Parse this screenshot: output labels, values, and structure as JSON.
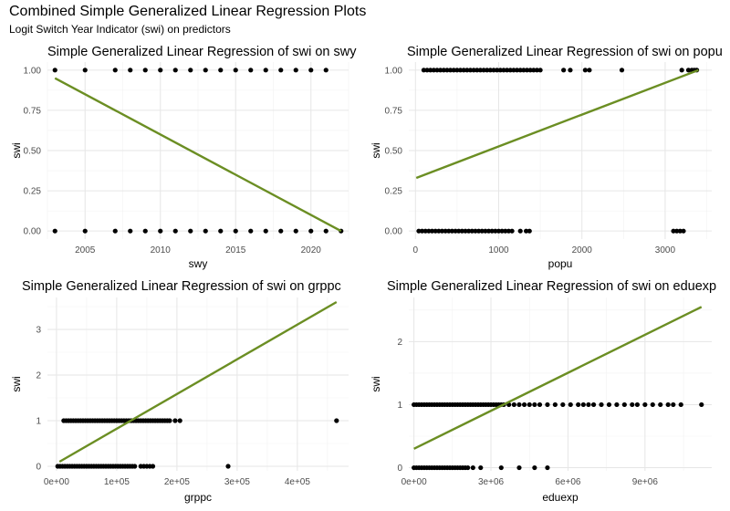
{
  "figure": {
    "title": "Combined Simple Generalized Linear Regression Plots",
    "subtitle": "Logit Switch Year Indicator (swi) on predictors"
  },
  "colors": {
    "line": "#6b8e23",
    "points": "#000000",
    "grid_major": "#e6e6e6",
    "grid_minor": "#f2f2f2",
    "tick_text": "#4d4d4d"
  },
  "chart_data": [
    {
      "type": "scatter",
      "title": "Simple Generalized Linear Regression of swi on swy",
      "xlabel": "swy",
      "ylabel": "swi",
      "xlim": [
        2002.5,
        2022.5
      ],
      "ylim": [
        -0.05,
        1.05
      ],
      "xticks": [
        2005,
        2010,
        2015,
        2020
      ],
      "xtick_labels": [
        "2005",
        "2010",
        "2015",
        "2020"
      ],
      "yticks": [
        0,
        0.25,
        0.5,
        0.75,
        1
      ],
      "ytick_labels": [
        "0.00",
        "0.25",
        "0.50",
        "0.75",
        "1.00"
      ],
      "points": [
        [
          2003,
          1
        ],
        [
          2005,
          1
        ],
        [
          2007,
          1
        ],
        [
          2008,
          1
        ],
        [
          2009,
          1
        ],
        [
          2010,
          1
        ],
        [
          2011,
          1
        ],
        [
          2012,
          1
        ],
        [
          2013,
          1
        ],
        [
          2014,
          1
        ],
        [
          2015,
          1
        ],
        [
          2016,
          1
        ],
        [
          2017,
          1
        ],
        [
          2018,
          1
        ],
        [
          2019,
          1
        ],
        [
          2020,
          1
        ],
        [
          2021,
          1
        ],
        [
          2003,
          0
        ],
        [
          2005,
          0
        ],
        [
          2007,
          0
        ],
        [
          2008,
          0
        ],
        [
          2009,
          0
        ],
        [
          2010,
          0
        ],
        [
          2011,
          0
        ],
        [
          2012,
          0
        ],
        [
          2013,
          0
        ],
        [
          2014,
          0
        ],
        [
          2015,
          0
        ],
        [
          2016,
          0
        ],
        [
          2017,
          0
        ],
        [
          2018,
          0
        ],
        [
          2019,
          0
        ],
        [
          2020,
          0
        ],
        [
          2021,
          0
        ],
        [
          2022,
          0
        ]
      ],
      "fit_line": [
        [
          2003,
          0.95
        ],
        [
          2022,
          0.0
        ]
      ]
    },
    {
      "type": "scatter",
      "title": "Simple Generalized Linear Regression of swi on popu",
      "xlabel": "popu",
      "ylabel": "swi",
      "xlim": [
        -80,
        3560
      ],
      "ylim": [
        -0.05,
        1.05
      ],
      "xticks": [
        0,
        1000,
        2000,
        3000
      ],
      "xtick_labels": [
        "0",
        "1000",
        "2000",
        "3000"
      ],
      "yticks": [
        0,
        0.25,
        0.5,
        0.75,
        1
      ],
      "ytick_labels": [
        "0.00",
        "0.25",
        "0.50",
        "0.75",
        "1.00"
      ],
      "points": [
        [
          100,
          1
        ],
        [
          140,
          1
        ],
        [
          180,
          1
        ],
        [
          220,
          1
        ],
        [
          260,
          1
        ],
        [
          300,
          1
        ],
        [
          340,
          1
        ],
        [
          380,
          1
        ],
        [
          420,
          1
        ],
        [
          460,
          1
        ],
        [
          500,
          1
        ],
        [
          540,
          1
        ],
        [
          580,
          1
        ],
        [
          620,
          1
        ],
        [
          660,
          1
        ],
        [
          700,
          1
        ],
        [
          740,
          1
        ],
        [
          780,
          1
        ],
        [
          820,
          1
        ],
        [
          860,
          1
        ],
        [
          900,
          1
        ],
        [
          940,
          1
        ],
        [
          980,
          1
        ],
        [
          1020,
          1
        ],
        [
          1060,
          1
        ],
        [
          1100,
          1
        ],
        [
          1140,
          1
        ],
        [
          1180,
          1
        ],
        [
          1220,
          1
        ],
        [
          1260,
          1
        ],
        [
          1300,
          1
        ],
        [
          1340,
          1
        ],
        [
          1380,
          1
        ],
        [
          1420,
          1
        ],
        [
          1460,
          1
        ],
        [
          1500,
          1
        ],
        [
          1780,
          1
        ],
        [
          1860,
          1
        ],
        [
          2040,
          1
        ],
        [
          2090,
          1
        ],
        [
          2480,
          1
        ],
        [
          3200,
          1
        ],
        [
          3280,
          1
        ],
        [
          3320,
          1
        ],
        [
          3350,
          1
        ],
        [
          3380,
          1
        ],
        [
          40,
          0
        ],
        [
          80,
          0
        ],
        [
          120,
          0
        ],
        [
          160,
          0
        ],
        [
          200,
          0
        ],
        [
          240,
          0
        ],
        [
          280,
          0
        ],
        [
          320,
          0
        ],
        [
          360,
          0
        ],
        [
          400,
          0
        ],
        [
          440,
          0
        ],
        [
          480,
          0
        ],
        [
          520,
          0
        ],
        [
          560,
          0
        ],
        [
          600,
          0
        ],
        [
          640,
          0
        ],
        [
          680,
          0
        ],
        [
          720,
          0
        ],
        [
          760,
          0
        ],
        [
          800,
          0
        ],
        [
          840,
          0
        ],
        [
          880,
          0
        ],
        [
          920,
          0
        ],
        [
          960,
          0
        ],
        [
          1000,
          0
        ],
        [
          1040,
          0
        ],
        [
          1080,
          0
        ],
        [
          1120,
          0
        ],
        [
          1160,
          0
        ],
        [
          1260,
          0
        ],
        [
          1330,
          0
        ],
        [
          1370,
          0
        ],
        [
          3100,
          0
        ],
        [
          3140,
          0
        ],
        [
          3180,
          0
        ],
        [
          3220,
          0
        ]
      ],
      "fit_line": [
        [
          10,
          0.33
        ],
        [
          3400,
          1.0
        ]
      ]
    },
    {
      "type": "scatter",
      "title": "Simple Generalized Linear Regression of swi on grppc",
      "xlabel": "grppc",
      "ylabel": "swi",
      "xlim": [
        -15000,
        485000
      ],
      "ylim": [
        -0.1,
        3.7
      ],
      "xticks": [
        0,
        100000,
        200000,
        300000,
        400000
      ],
      "xtick_labels": [
        "0e+00",
        "1e+05",
        "2e+05",
        "3e+05",
        "4e+05"
      ],
      "yticks": [
        0,
        1,
        2,
        3
      ],
      "ytick_labels": [
        "0",
        "1",
        "2",
        "3"
      ],
      "points": [
        [
          12000,
          1
        ],
        [
          16000,
          1
        ],
        [
          20000,
          1
        ],
        [
          24000,
          1
        ],
        [
          28000,
          1
        ],
        [
          32000,
          1
        ],
        [
          36000,
          1
        ],
        [
          40000,
          1
        ],
        [
          44000,
          1
        ],
        [
          48000,
          1
        ],
        [
          52000,
          1
        ],
        [
          56000,
          1
        ],
        [
          60000,
          1
        ],
        [
          64000,
          1
        ],
        [
          68000,
          1
        ],
        [
          72000,
          1
        ],
        [
          76000,
          1
        ],
        [
          80000,
          1
        ],
        [
          84000,
          1
        ],
        [
          88000,
          1
        ],
        [
          92000,
          1
        ],
        [
          96000,
          1
        ],
        [
          100000,
          1
        ],
        [
          104000,
          1
        ],
        [
          108000,
          1
        ],
        [
          112000,
          1
        ],
        [
          116000,
          1
        ],
        [
          120000,
          1
        ],
        [
          124000,
          1
        ],
        [
          128000,
          1
        ],
        [
          132000,
          1
        ],
        [
          136000,
          1
        ],
        [
          140000,
          1
        ],
        [
          144000,
          1
        ],
        [
          148000,
          1
        ],
        [
          152000,
          1
        ],
        [
          156000,
          1
        ],
        [
          160000,
          1
        ],
        [
          164000,
          1
        ],
        [
          168000,
          1
        ],
        [
          172000,
          1
        ],
        [
          176000,
          1
        ],
        [
          180000,
          1
        ],
        [
          184000,
          1
        ],
        [
          188000,
          1
        ],
        [
          197000,
          1
        ],
        [
          205000,
          1
        ],
        [
          465000,
          1
        ],
        [
          2000,
          0
        ],
        [
          6000,
          0
        ],
        [
          10000,
          0
        ],
        [
          14000,
          0
        ],
        [
          18000,
          0
        ],
        [
          22000,
          0
        ],
        [
          26000,
          0
        ],
        [
          30000,
          0
        ],
        [
          34000,
          0
        ],
        [
          38000,
          0
        ],
        [
          42000,
          0
        ],
        [
          46000,
          0
        ],
        [
          50000,
          0
        ],
        [
          54000,
          0
        ],
        [
          58000,
          0
        ],
        [
          62000,
          0
        ],
        [
          66000,
          0
        ],
        [
          70000,
          0
        ],
        [
          74000,
          0
        ],
        [
          78000,
          0
        ],
        [
          82000,
          0
        ],
        [
          86000,
          0
        ],
        [
          90000,
          0
        ],
        [
          94000,
          0
        ],
        [
          98000,
          0
        ],
        [
          102000,
          0
        ],
        [
          106000,
          0
        ],
        [
          110000,
          0
        ],
        [
          114000,
          0
        ],
        [
          118000,
          0
        ],
        [
          122000,
          0
        ],
        [
          126000,
          0
        ],
        [
          130000,
          0
        ],
        [
          140000,
          0
        ],
        [
          145000,
          0
        ],
        [
          150000,
          0
        ],
        [
          155000,
          0
        ],
        [
          160000,
          0
        ],
        [
          285000,
          0
        ]
      ],
      "fit_line": [
        [
          5000,
          0.1
        ],
        [
          465000,
          3.6
        ]
      ]
    },
    {
      "type": "scatter",
      "title": "Simple Generalized Linear Regression of swi on eduexp",
      "xlabel": "eduexp",
      "ylabel": "swi",
      "xlim": [
        -200000,
        11600000
      ],
      "ylim": [
        -0.05,
        2.7
      ],
      "xticks": [
        0,
        3000000,
        6000000,
        9000000
      ],
      "xtick_labels": [
        "0e+00",
        "3e+06",
        "6e+06",
        "9e+06"
      ],
      "yticks": [
        0,
        1,
        2
      ],
      "ytick_labels": [
        "0",
        "1",
        "2"
      ],
      "points": [
        [
          0,
          1
        ],
        [
          100000,
          1
        ],
        [
          200000,
          1
        ],
        [
          300000,
          1
        ],
        [
          400000,
          1
        ],
        [
          500000,
          1
        ],
        [
          600000,
          1
        ],
        [
          700000,
          1
        ],
        [
          800000,
          1
        ],
        [
          900000,
          1
        ],
        [
          1000000,
          1
        ],
        [
          1100000,
          1
        ],
        [
          1200000,
          1
        ],
        [
          1300000,
          1
        ],
        [
          1400000,
          1
        ],
        [
          1500000,
          1
        ],
        [
          1600000,
          1
        ],
        [
          1700000,
          1
        ],
        [
          1800000,
          1
        ],
        [
          1900000,
          1
        ],
        [
          2000000,
          1
        ],
        [
          2100000,
          1
        ],
        [
          2200000,
          1
        ],
        [
          2300000,
          1
        ],
        [
          2400000,
          1
        ],
        [
          2500000,
          1
        ],
        [
          2600000,
          1
        ],
        [
          2700000,
          1
        ],
        [
          2800000,
          1
        ],
        [
          2900000,
          1
        ],
        [
          3000000,
          1
        ],
        [
          3100000,
          1
        ],
        [
          3200000,
          1
        ],
        [
          3300000,
          1
        ],
        [
          3400000,
          1
        ],
        [
          3500000,
          1
        ],
        [
          3700000,
          1
        ],
        [
          3900000,
          1
        ],
        [
          4100000,
          1
        ],
        [
          4300000,
          1
        ],
        [
          4500000,
          1
        ],
        [
          4700000,
          1
        ],
        [
          4900000,
          1
        ],
        [
          5200000,
          1
        ],
        [
          5500000,
          1
        ],
        [
          5800000,
          1
        ],
        [
          6100000,
          1
        ],
        [
          6400000,
          1
        ],
        [
          6600000,
          1
        ],
        [
          6800000,
          1
        ],
        [
          7000000,
          1
        ],
        [
          7300000,
          1
        ],
        [
          7600000,
          1
        ],
        [
          7900000,
          1
        ],
        [
          8200000,
          1
        ],
        [
          8500000,
          1
        ],
        [
          8700000,
          1
        ],
        [
          9000000,
          1
        ],
        [
          9300000,
          1
        ],
        [
          9600000,
          1
        ],
        [
          9900000,
          1
        ],
        [
          10100000,
          1
        ],
        [
          10400000,
          1
        ],
        [
          11200000,
          1
        ],
        [
          0,
          0
        ],
        [
          100000,
          0
        ],
        [
          200000,
          0
        ],
        [
          300000,
          0
        ],
        [
          400000,
          0
        ],
        [
          500000,
          0
        ],
        [
          600000,
          0
        ],
        [
          700000,
          0
        ],
        [
          800000,
          0
        ],
        [
          900000,
          0
        ],
        [
          1000000,
          0
        ],
        [
          1100000,
          0
        ],
        [
          1200000,
          0
        ],
        [
          1300000,
          0
        ],
        [
          1400000,
          0
        ],
        [
          1500000,
          0
        ],
        [
          1600000,
          0
        ],
        [
          1700000,
          0
        ],
        [
          1800000,
          0
        ],
        [
          1900000,
          0
        ],
        [
          2000000,
          0
        ],
        [
          2100000,
          0
        ],
        [
          2300000,
          0
        ],
        [
          2600000,
          0
        ],
        [
          3400000,
          0
        ],
        [
          4100000,
          0
        ],
        [
          4700000,
          0
        ],
        [
          5200000,
          0
        ]
      ],
      "fit_line": [
        [
          0,
          0.3
        ],
        [
          11200000,
          2.55
        ]
      ]
    }
  ]
}
